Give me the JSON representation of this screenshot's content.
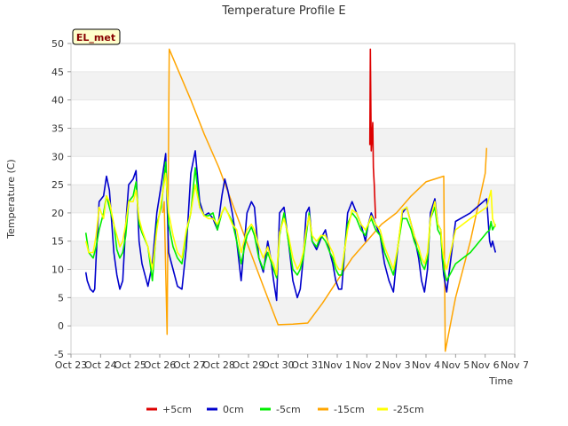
{
  "chart_data": {
    "type": "line",
    "title": "Temperature Profile E",
    "xlabel": "Time",
    "ylabel": "Temperature (C)",
    "site_label": "EL_met",
    "xlim": [
      0,
      15
    ],
    "ylim": [
      -5,
      50
    ],
    "x_ticks": [
      {
        "v": 0,
        "label": "Oct 23"
      },
      {
        "v": 1,
        "label": "Oct 24"
      },
      {
        "v": 2,
        "label": "Oct 25"
      },
      {
        "v": 3,
        "label": "Oct 26"
      },
      {
        "v": 4,
        "label": "Oct 27"
      },
      {
        "v": 5,
        "label": "Oct 28"
      },
      {
        "v": 6,
        "label": "Oct 29"
      },
      {
        "v": 7,
        "label": "Oct 30"
      },
      {
        "v": 8,
        "label": "Oct 31"
      },
      {
        "v": 9,
        "label": "Nov 1"
      },
      {
        "v": 10,
        "label": "Nov 2"
      },
      {
        "v": 11,
        "label": "Nov 3"
      },
      {
        "v": 12,
        "label": "Nov 4"
      },
      {
        "v": 13,
        "label": "Nov 5"
      },
      {
        "v": 14,
        "label": "Nov 6"
      },
      {
        "v": 15,
        "label": "Nov 7"
      }
    ],
    "y_ticks": [
      -5,
      0,
      5,
      10,
      15,
      20,
      25,
      30,
      35,
      40,
      45,
      50
    ],
    "series": [
      {
        "name": "0cm",
        "color": "#0000cc",
        "x": [
          0.5,
          0.55,
          0.65,
          0.75,
          0.8,
          0.85,
          0.95,
          1.1,
          1.2,
          1.3,
          1.45,
          1.55,
          1.65,
          1.75,
          1.85,
          1.95,
          2.1,
          2.2,
          2.3,
          2.4,
          2.6,
          2.75,
          2.9,
          3.05,
          3.2,
          3.3,
          3.45,
          3.6,
          3.75,
          3.9,
          4.05,
          4.2,
          4.35,
          4.5,
          4.65,
          4.8,
          4.95,
          5.1,
          5.2,
          5.3,
          5.45,
          5.6,
          5.75,
          5.95,
          6.1,
          6.2,
          6.35,
          6.5,
          6.65,
          6.75,
          6.85,
          6.95,
          7.05,
          7.2,
          7.35,
          7.5,
          7.65,
          7.75,
          7.85,
          7.95,
          8.05,
          8.15,
          8.3,
          8.45,
          8.6,
          8.75,
          8.85,
          8.95,
          9.05,
          9.15,
          9.35,
          9.5,
          9.65,
          9.8,
          9.95,
          10.05,
          10.15,
          10.3,
          10.45,
          10.6,
          10.75,
          10.9,
          11.05,
          11.2,
          11.35,
          11.5,
          11.6,
          11.75,
          11.85,
          11.95,
          12.05,
          12.15,
          12.3,
          12.4,
          12.5,
          12.55,
          12.6,
          12.7,
          13.0,
          13.5,
          14.05,
          14.15,
          14.2,
          14.25,
          14.35
        ],
        "values": [
          9.5,
          8.0,
          6.5,
          6.0,
          6.5,
          12.0,
          22.0,
          23.0,
          26.5,
          24.0,
          13.0,
          9.0,
          6.5,
          8.0,
          18.0,
          25.0,
          26.0,
          27.5,
          15.0,
          11.0,
          7.0,
          11.0,
          20.0,
          25.0,
          30.5,
          13.0,
          10.0,
          7.0,
          6.5,
          14.0,
          27.0,
          31.0,
          22.0,
          19.5,
          20.0,
          19.0,
          17.0,
          23.0,
          26.0,
          24.0,
          20.0,
          15.0,
          8.0,
          20.0,
          22.0,
          21.0,
          12.0,
          9.5,
          15.0,
          12.0,
          8.0,
          4.5,
          20.0,
          21.0,
          15.0,
          8.0,
          5.0,
          6.5,
          12.0,
          20.0,
          21.0,
          15.0,
          13.5,
          15.5,
          17.0,
          13.0,
          11.0,
          8.0,
          6.5,
          6.5,
          20.0,
          22.0,
          20.0,
          18.0,
          15.0,
          18.0,
          20.0,
          18.0,
          16.0,
          11.0,
          8.0,
          6.0,
          14.0,
          20.0,
          21.0,
          18.0,
          16.0,
          12.0,
          8.0,
          6.0,
          10.0,
          20.0,
          22.5,
          18.0,
          17.0,
          12.0,
          9.0,
          6.0,
          18.5,
          20.0,
          22.5,
          15.0,
          14.0,
          15.0,
          13.0
        ]
      },
      {
        "name": "-5cm",
        "color": "#00ee00",
        "x": [
          0.5,
          0.6,
          0.75,
          0.85,
          0.95,
          1.1,
          1.2,
          1.3,
          1.45,
          1.55,
          1.65,
          1.75,
          1.85,
          1.95,
          2.1,
          2.2,
          2.3,
          2.4,
          2.6,
          2.75,
          2.9,
          3.05,
          3.2,
          3.3,
          3.45,
          3.6,
          3.75,
          3.9,
          4.05,
          4.2,
          4.35,
          4.5,
          4.65,
          4.8,
          4.95,
          5.1,
          5.2,
          5.3,
          5.45,
          5.6,
          5.75,
          5.95,
          6.1,
          6.2,
          6.35,
          6.5,
          6.65,
          6.75,
          6.85,
          6.95,
          7.05,
          7.2,
          7.35,
          7.5,
          7.65,
          7.75,
          7.85,
          7.95,
          8.05,
          8.15,
          8.3,
          8.45,
          8.6,
          8.75,
          8.85,
          8.95,
          9.05,
          9.15,
          9.35,
          9.5,
          9.65,
          9.8,
          9.95,
          10.05,
          10.15,
          10.3,
          10.45,
          10.6,
          10.75,
          10.9,
          11.05,
          11.2,
          11.35,
          11.5,
          11.6,
          11.75,
          11.85,
          11.95,
          12.05,
          12.15,
          12.3,
          12.4,
          12.5,
          12.55,
          12.6,
          12.7,
          13.0,
          13.5,
          14.05,
          14.15,
          14.2,
          14.25,
          14.35
        ],
        "values": [
          16.5,
          13.0,
          12.0,
          14.0,
          17.0,
          20.0,
          23.0,
          21.0,
          18.0,
          13.5,
          12.0,
          13.0,
          16.0,
          22.0,
          23.0,
          25.5,
          18.0,
          16.5,
          14.0,
          8.0,
          18.0,
          21.0,
          29.0,
          18.0,
          14.0,
          12.0,
          11.0,
          16.5,
          20.0,
          28.0,
          21.0,
          19.5,
          19.5,
          20.0,
          17.0,
          20.0,
          21.0,
          20.0,
          18.5,
          15.0,
          11.0,
          16.0,
          17.5,
          16.0,
          12.0,
          10.0,
          13.0,
          11.5,
          10.0,
          8.5,
          16.0,
          20.0,
          15.0,
          10.0,
          9.0,
          10.0,
          12.0,
          16.0,
          20.0,
          15.0,
          14.0,
          16.0,
          15.0,
          13.0,
          12.0,
          10.0,
          9.0,
          9.0,
          18.0,
          20.0,
          19.0,
          17.0,
          16.0,
          18.0,
          19.0,
          17.0,
          16.0,
          13.0,
          11.0,
          9.0,
          14.0,
          19.0,
          19.0,
          17.0,
          15.0,
          13.0,
          11.0,
          10.0,
          12.0,
          19.0,
          21.0,
          17.0,
          16.0,
          13.0,
          10.0,
          8.0,
          11.0,
          13.0,
          16.5,
          17.0,
          18.5,
          17.0,
          18.0
        ]
      },
      {
        "name": "-15cm",
        "color": "#ffa500",
        "x": [
          3.1,
          3.15,
          3.25,
          3.32,
          4.05,
          4.5,
          5.0,
          5.5,
          6.0,
          6.5,
          7.0,
          7.5,
          8.0,
          8.5,
          9.0,
          9.5,
          10.0,
          10.5,
          11.0,
          11.5,
          12.0,
          12.6,
          12.65,
          13.0,
          13.5,
          14.0,
          14.05
        ],
        "values": [
          20.0,
          22.0,
          -1.5,
          49.0,
          40.0,
          34.0,
          28.0,
          21.0,
          14.0,
          7.0,
          0.2,
          0.3,
          0.5,
          4.0,
          8.0,
          12.0,
          15.0,
          18.0,
          20.0,
          23.0,
          25.5,
          26.5,
          -4.5,
          5.0,
          15.0,
          27.0,
          31.5
        ]
      },
      {
        "name": "-25cm",
        "color": "#ffff00",
        "x": [
          0.5,
          0.6,
          0.75,
          0.85,
          0.95,
          1.1,
          1.2,
          1.3,
          1.45,
          1.55,
          1.65,
          1.75,
          1.85,
          1.95,
          2.1,
          2.2,
          2.3,
          2.4,
          2.6,
          2.75,
          2.9,
          3.05,
          3.2,
          3.3,
          3.45,
          3.6,
          3.75,
          3.9,
          4.05,
          4.2,
          4.35,
          4.5,
          4.65,
          4.8,
          4.95,
          5.1,
          5.2,
          5.3,
          5.45,
          5.6,
          5.75,
          5.95,
          6.1,
          6.2,
          6.35,
          6.5,
          6.65,
          6.75,
          6.85,
          6.95,
          7.05,
          7.2,
          7.35,
          7.5,
          7.65,
          7.75,
          7.85,
          7.95,
          8.05,
          8.15,
          8.3,
          8.45,
          8.6,
          8.75,
          8.85,
          8.95,
          9.05,
          9.15,
          9.35,
          9.5,
          9.65,
          9.8,
          9.95,
          10.05,
          10.15,
          10.3,
          10.45,
          10.6,
          10.75,
          10.9,
          11.05,
          11.2,
          11.35,
          11.5,
          11.6,
          11.75,
          11.85,
          11.95,
          12.05,
          12.15,
          12.3,
          12.4,
          12.5,
          12.55,
          12.6,
          12.7,
          13.0,
          13.5,
          14.05,
          14.15,
          14.2,
          14.25,
          14.35
        ],
        "values": [
          15.0,
          13.0,
          13.0,
          16.0,
          21.0,
          19.0,
          23.0,
          22.0,
          18.0,
          16.0,
          14.0,
          15.0,
          18.0,
          22.0,
          22.0,
          24.0,
          19.0,
          17.0,
          14.0,
          10.0,
          17.0,
          22.0,
          27.0,
          20.0,
          16.0,
          13.0,
          12.0,
          17.0,
          20.0,
          25.0,
          21.0,
          19.5,
          19.0,
          19.0,
          18.0,
          20.0,
          21.0,
          20.0,
          18.0,
          17.0,
          13.0,
          17.0,
          18.0,
          17.0,
          14.0,
          12.0,
          14.0,
          12.0,
          11.0,
          9.0,
          16.5,
          19.0,
          16.0,
          12.0,
          10.0,
          11.0,
          13.0,
          17.0,
          19.5,
          16.0,
          15.0,
          16.0,
          16.0,
          14.0,
          13.0,
          11.0,
          10.0,
          10.0,
          17.0,
          20.5,
          20.0,
          18.0,
          17.0,
          18.0,
          19.5,
          18.0,
          17.0,
          14.0,
          12.0,
          10.0,
          14.0,
          20.5,
          21.0,
          18.0,
          16.0,
          14.0,
          12.0,
          11.0,
          13.0,
          19.0,
          22.0,
          18.0,
          17.0,
          14.0,
          12.0,
          10.0,
          17.0,
          19.0,
          21.0,
          23.0,
          24.0,
          19.0,
          17.5
        ]
      },
      {
        "name": "+5cm",
        "color": "#dd0000",
        "x": [
          10.1,
          10.12,
          10.15,
          10.17,
          10.2,
          10.22,
          10.25,
          10.28,
          10.3
        ],
        "values": [
          32.0,
          49.0,
          31.0,
          33.0,
          36.0,
          28.0,
          25.0,
          21.0,
          19.0
        ]
      }
    ],
    "legend": [
      {
        "name": "+5cm",
        "color": "#dd0000"
      },
      {
        "name": "0cm",
        "color": "#0000cc"
      },
      {
        "name": "-5cm",
        "color": "#00ee00"
      },
      {
        "name": "-15cm",
        "color": "#ffa500"
      },
      {
        "name": "-25cm",
        "color": "#ffff00"
      }
    ],
    "legend_position": "bottom"
  }
}
